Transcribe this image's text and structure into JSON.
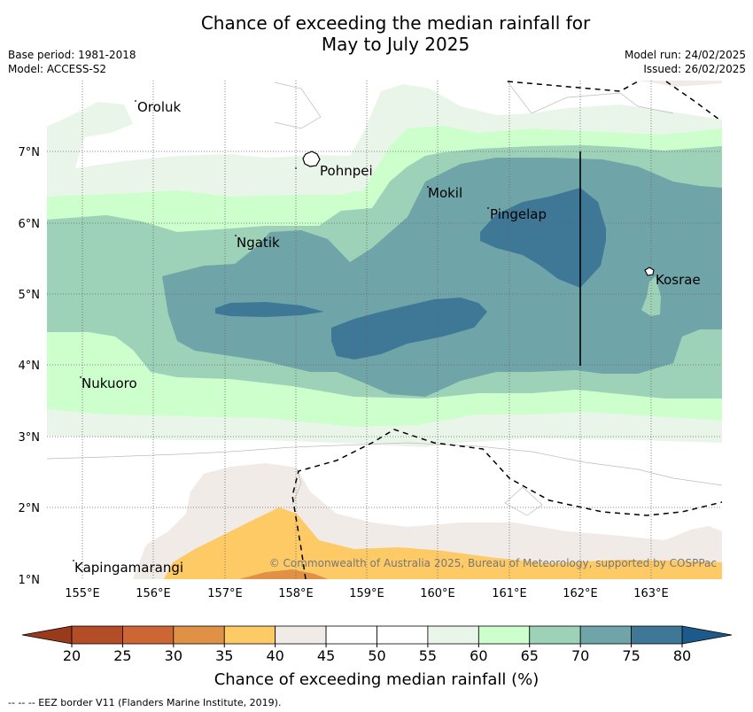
{
  "header": {
    "title_line1": "Chance of exceeding the median rainfall for",
    "title_line2": "May to July 2025",
    "base_period": "Base period: 1981-2018",
    "model": "Model: ACCESS-S2",
    "model_run": "Model run: 24/02/2025",
    "issued": "Issued: 26/02/2025"
  },
  "map": {
    "x_ticks": [
      "155°E",
      "156°E",
      "157°E",
      "158°E",
      "159°E",
      "160°E",
      "161°E",
      "162°E",
      "163°E"
    ],
    "y_ticks": [
      "7°N",
      "6°N",
      "5°N",
      "4°N",
      "3°N",
      "2°N",
      "1°N"
    ],
    "places": {
      "oroluk": "Oroluk",
      "pohnpei": "Pohnpei",
      "mokil": "Mokil",
      "pingelap": "Pingelap",
      "ngatik": "Ngatik",
      "kosrae": "Kosrae",
      "nukuoro": "Nukuoro",
      "kapingamarangi": "Kapingamarangi"
    },
    "copyright": "© Commonwealth of Australia 2025, Bureau of Meteorology, supported by COSPPac"
  },
  "colorbar": {
    "ticks": [
      "20",
      "25",
      "30",
      "35",
      "40",
      "45",
      "50",
      "55",
      "60",
      "65",
      "70",
      "75",
      "80"
    ],
    "colors": [
      "#b34d27",
      "#cd6633",
      "#e09146",
      "#fdca66",
      "#f0ebe6",
      "#ffffff",
      "#ffffff",
      "#eaf5ea",
      "#ccffcc",
      "#9dd1b8",
      "#6fa5a8",
      "#3f7897"
    ],
    "under_color": "#9a3a1c",
    "over_color": "#1d5a8c",
    "label": "Chance of exceeding median rainfall (%)"
  },
  "footnote": "--  --  -- EEZ border V11 (Flanders Marine Institute, 2019)."
}
